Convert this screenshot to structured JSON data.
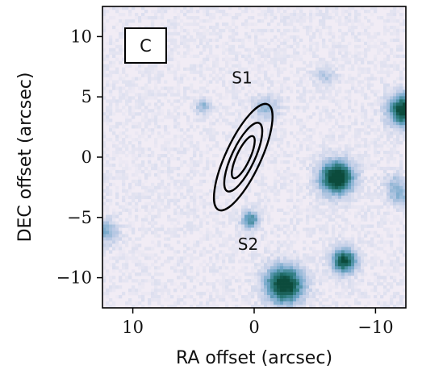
{
  "chart_data": {
    "type": "heatmap",
    "title": "",
    "panel_label": "C",
    "xlabel": "RA offset (arcsec)",
    "ylabel": "DEC offset (arcsec)",
    "xlim": [
      12.5,
      -12.5
    ],
    "ylim": [
      -12.5,
      12.5
    ],
    "x_ticks": [
      10,
      0,
      -10
    ],
    "x_tick_labels": [
      "10",
      "0",
      "−10"
    ],
    "y_ticks": [
      10,
      5,
      0,
      -5,
      -10
    ],
    "y_tick_labels": [
      "10",
      "5",
      "0",
      "−5",
      "−10"
    ],
    "grid": false,
    "colormap": "PuBuGn",
    "background_color": "#f1ecf5",
    "peak_color": "#0c4b3c",
    "contour_color": "#000000",
    "contours": [
      {
        "level": 1,
        "center": [
          0.9,
          0.0
        ],
        "semi_major": 1.9,
        "semi_minor": 0.55,
        "tilt_deg": 65
      },
      {
        "level": 2,
        "center": [
          0.9,
          0.0
        ],
        "semi_major": 3.1,
        "semi_minor": 0.95,
        "tilt_deg": 65
      },
      {
        "level": 3,
        "center": [
          0.9,
          0.0
        ],
        "semi_major": 4.8,
        "semi_minor": 1.45,
        "tilt_deg": 65
      }
    ],
    "sources": [
      {
        "x": -6.8,
        "y": -1.7,
        "amplitude": 1.0,
        "sigma": 0.95
      },
      {
        "x": -2.5,
        "y": -10.6,
        "amplitude": 1.0,
        "sigma": 1.05
      },
      {
        "x": -7.4,
        "y": -8.6,
        "amplitude": 0.85,
        "sigma": 0.7
      },
      {
        "x": -12.4,
        "y": 3.9,
        "amplitude": 0.95,
        "sigma": 0.9
      },
      {
        "x": 0.3,
        "y": -5.2,
        "amplitude": 0.55,
        "sigma": 0.5
      },
      {
        "x": -1.0,
        "y": 4.1,
        "amplitude": 0.28,
        "sigma": 0.75
      },
      {
        "x": 4.2,
        "y": 4.2,
        "amplitude": 0.32,
        "sigma": 0.45
      },
      {
        "x": 12.2,
        "y": -6.2,
        "amplitude": 0.35,
        "sigma": 0.7
      },
      {
        "x": -5.8,
        "y": 6.8,
        "amplitude": 0.22,
        "sigma": 0.6
      },
      {
        "x": -11.6,
        "y": -2.2,
        "amplitude": 0.25,
        "sigma": 0.6
      },
      {
        "x": -12.0,
        "y": -3.3,
        "amplitude": 0.3,
        "sigma": 0.6
      }
    ],
    "annotations": [
      {
        "text": "S1",
        "x": 1.0,
        "y": 6.1
      },
      {
        "text": "S2",
        "x": 0.5,
        "y": -7.7
      }
    ]
  }
}
